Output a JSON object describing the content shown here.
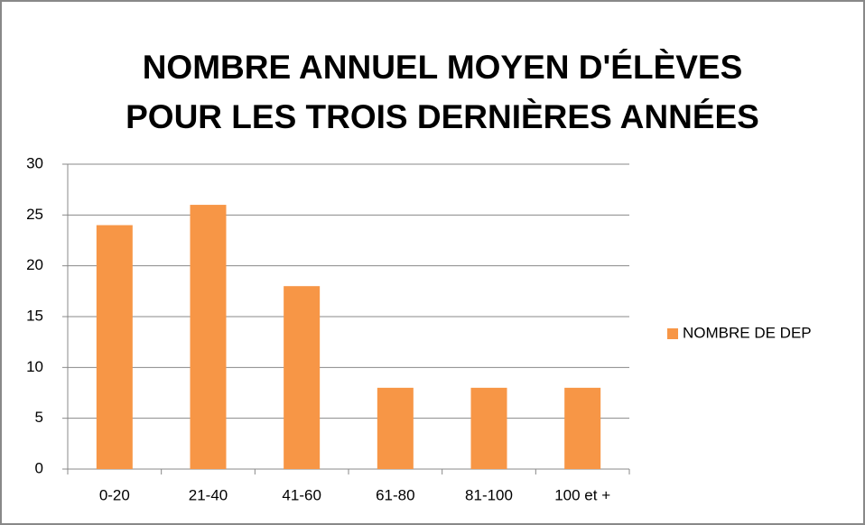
{
  "chart_data": {
    "type": "bar",
    "title": [
      "NOMBRE ANNUEL MOYEN D'ÉLÈVES",
      "POUR LES TROIS DERNIÈRES ANNÉES"
    ],
    "categories": [
      "0-20",
      "21-40",
      "41-60",
      "61-80",
      "81-100",
      "100 et +"
    ],
    "series": [
      {
        "name": "NOMBRE DE DEP",
        "color": "#f79646",
        "values": [
          24,
          26,
          18,
          8,
          8,
          8
        ]
      }
    ],
    "ylim": [
      0,
      30
    ],
    "yticks": [
      0,
      5,
      10,
      15,
      20,
      25,
      30
    ],
    "grid": true,
    "legend": "right"
  }
}
